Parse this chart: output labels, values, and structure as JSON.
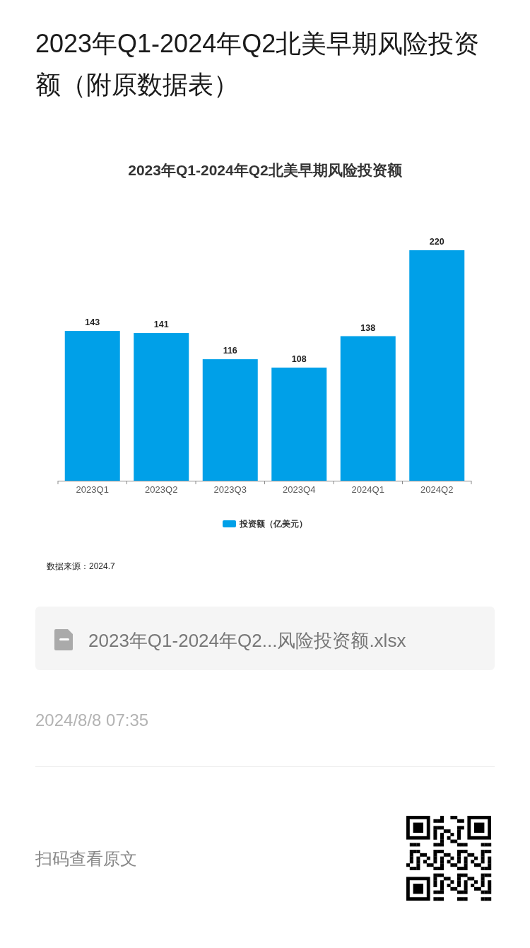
{
  "chart_data": {
    "type": "bar",
    "title": "2023年Q1-2024年Q2北美早期风险投资额（附原数据表）",
    "subtitle": "2023年Q1-2024年Q2北美早期风险投资额",
    "categories": [
      "2023Q1",
      "2023Q2",
      "2023Q3",
      "2023Q4",
      "2024Q1",
      "2024Q2"
    ],
    "series": [
      {
        "name": "投资额（亿美元）",
        "color": "#00a0e8",
        "values": [
          143,
          141,
          116,
          108,
          138,
          220
        ]
      }
    ],
    "data_labels": true,
    "legend": "bottom",
    "annotations": [
      "数据来源：2024.7",
      "2023年Q1-2024年Q2...风险投资额.xlsx",
      "2024/8/8 07:35",
      "扫码查看原文"
    ]
  }
}
